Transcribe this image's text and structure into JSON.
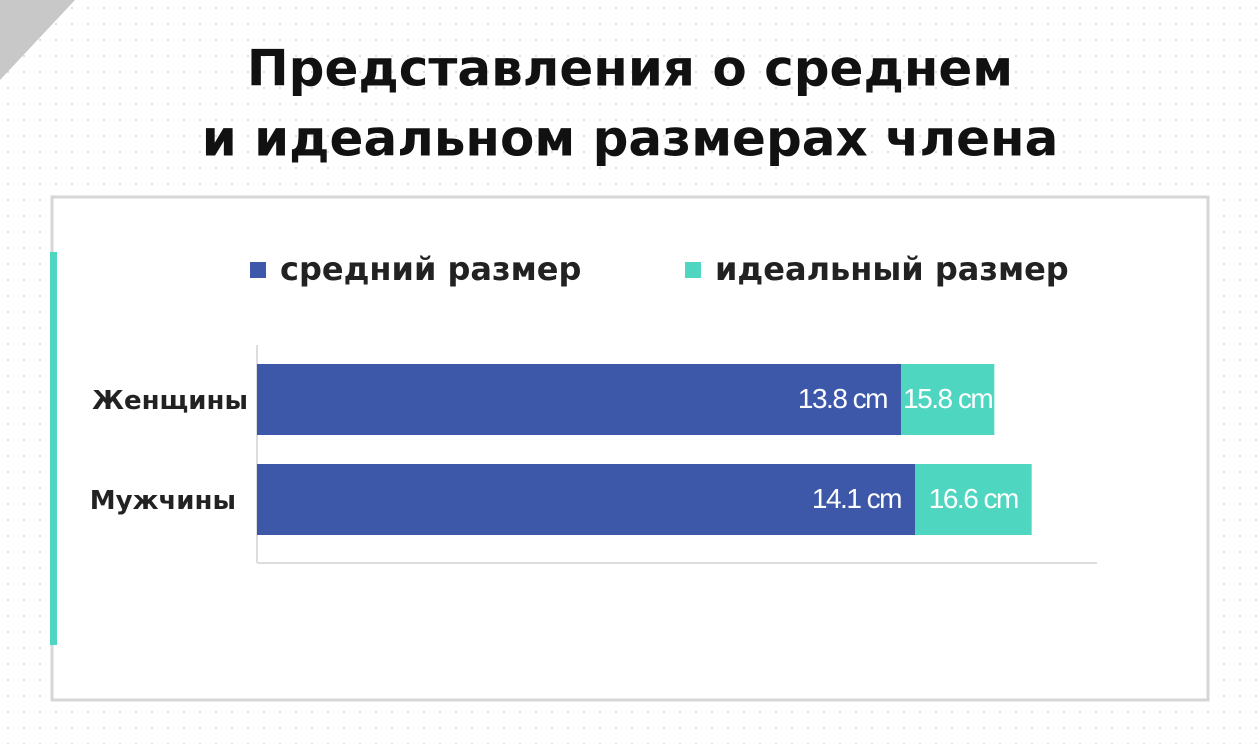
{
  "chart_data": {
    "type": "bar",
    "orientation": "horizontal",
    "overlap": true,
    "title": [
      "Представления о среднем",
      "и идеальном размерах  члена"
    ],
    "categories": [
      "Женщины",
      "Мужчины"
    ],
    "series": [
      {
        "name": "средний размер",
        "color": "#3d58a8",
        "values": [
          13.8,
          14.1
        ],
        "value_labels": [
          "13.8 cm",
          "14.1 cm"
        ]
      },
      {
        "name": "идеальный размер",
        "color": "#4fd6c1",
        "values": [
          15.8,
          16.6
        ],
        "value_labels": [
          "15.8 cm",
          "16.6 cm"
        ]
      }
    ],
    "xlim": [
      0,
      18
    ]
  }
}
